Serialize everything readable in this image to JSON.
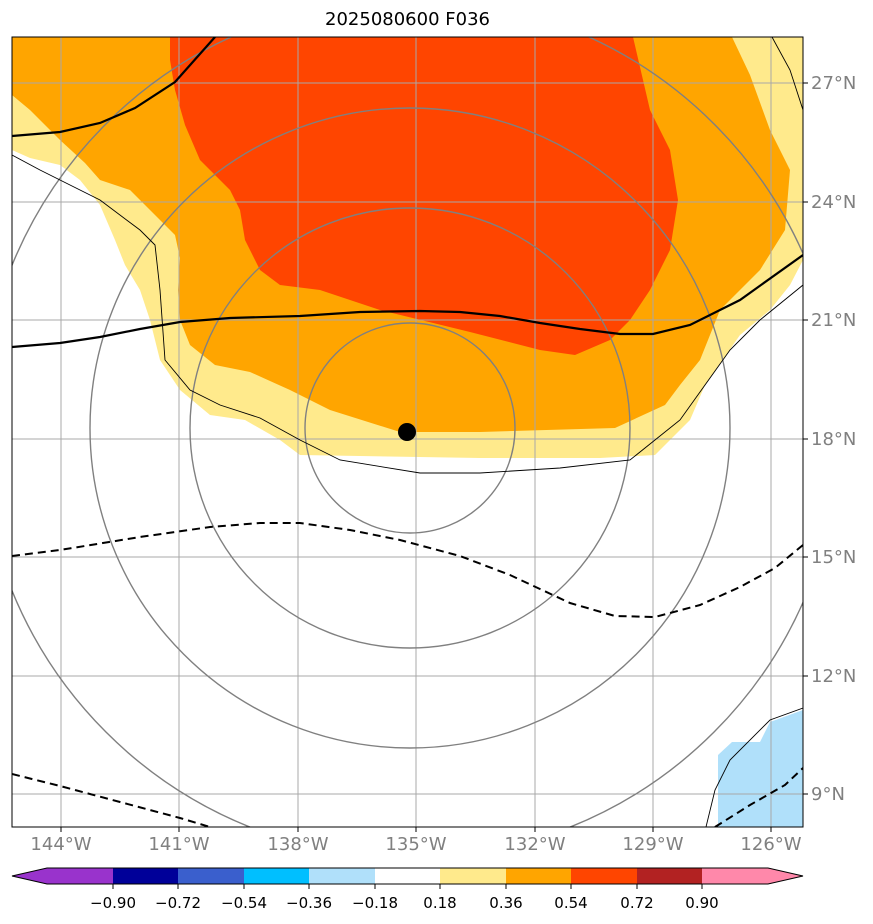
{
  "title": "2025080600 F036",
  "map": {
    "longitude_labels": [
      "144°W",
      "141°W",
      "138°W",
      "135°W",
      "132°W",
      "129°W",
      "126°W"
    ],
    "latitude_labels": [
      "27°N",
      "24°N",
      "21°N",
      "18°N",
      "15°N",
      "12°N",
      "9°N"
    ],
    "storm_center": {
      "lon": -135.2,
      "lat": 18.2
    },
    "gridline_color": "#a8a8a8",
    "range_ring_color": "#808080"
  },
  "colorbar": {
    "tick_labels": [
      "−0.90",
      "−0.72",
      "−0.54",
      "−0.36",
      "−0.18",
      "0.18",
      "0.36",
      "0.54",
      "0.72",
      "0.90"
    ],
    "colors": [
      "#9933cc",
      "#000099",
      "#3a5fcd",
      "#00bfff",
      "#b0e0fa",
      "#ffffff",
      "#ffea8c",
      "#ffa500",
      "#ff4500",
      "#b22222",
      "#ff88aa"
    ]
  }
}
